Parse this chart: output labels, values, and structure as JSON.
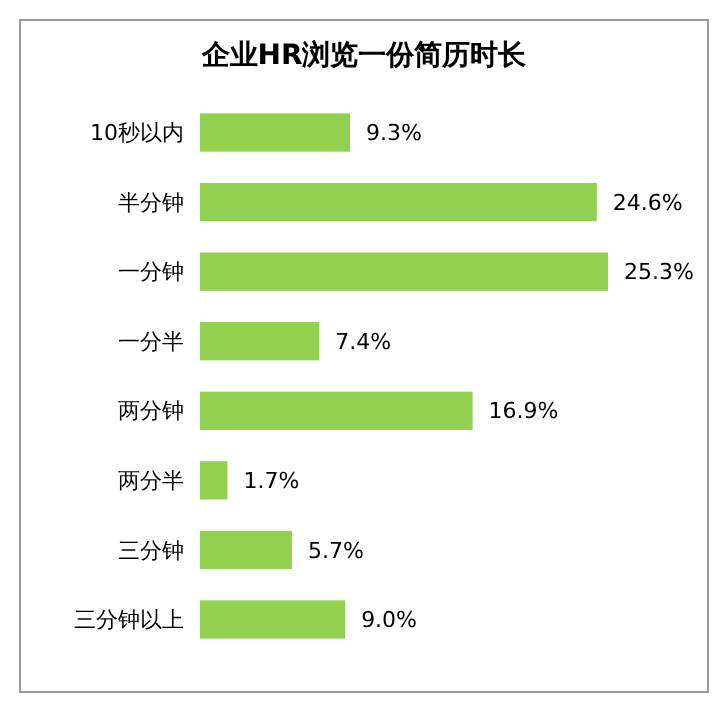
{
  "chart_data": {
    "type": "bar",
    "orientation": "horizontal",
    "title": "企业HR浏览一份简历时长",
    "categories": [
      "10秒以内",
      "半分钟",
      "一分钟",
      "一分半",
      "两分钟",
      "两分半",
      "三分钟",
      "三分钟以上"
    ],
    "values": [
      9.3,
      24.6,
      25.3,
      7.4,
      16.9,
      1.7,
      5.7,
      9.0
    ],
    "value_labels": [
      "9.3%",
      "24.6%",
      "25.3%",
      "7.4%",
      "16.9%",
      "1.7%",
      "5.7%",
      "9.0%"
    ],
    "color": "#92d050"
  }
}
